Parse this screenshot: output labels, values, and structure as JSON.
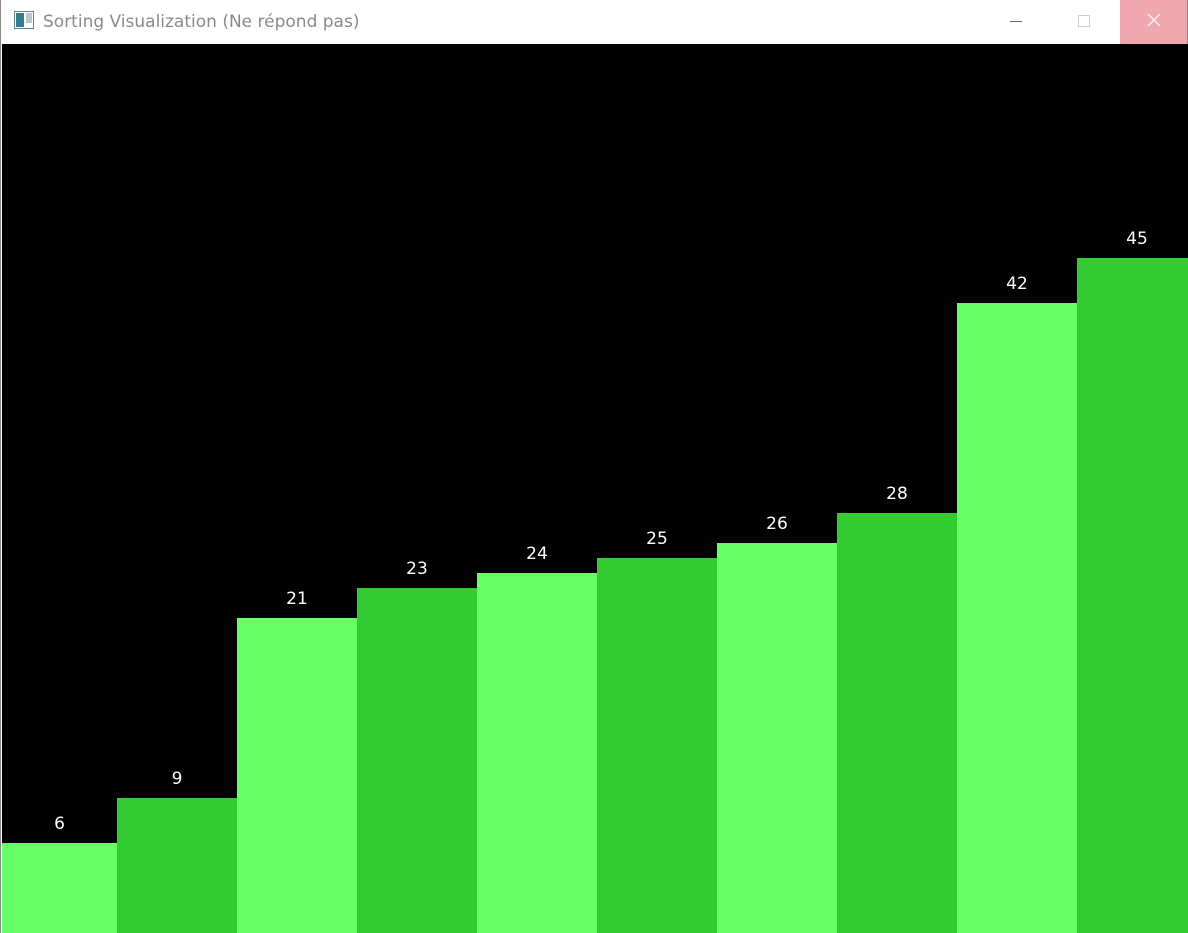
{
  "window": {
    "title": "Sorting Visualization (Ne répond pas)",
    "icon": "app-window-icon",
    "controls": [
      "minimize-icon",
      "maximize-icon",
      "close-icon"
    ],
    "close_hover_color": "#f1a7ae"
  },
  "chart_data": {
    "type": "bar",
    "title": "",
    "xlabel": "",
    "ylabel": "",
    "values": [
      6,
      9,
      21,
      23,
      24,
      25,
      26,
      28,
      42,
      45
    ],
    "colors": [
      "#66ff66",
      "#33cc33",
      "#66ff66",
      "#33cc33",
      "#66ff66",
      "#33cc33",
      "#66ff66",
      "#33cc33",
      "#66ff66",
      "#33cc33"
    ],
    "label_color": "#ffffff",
    "background": "#000000",
    "grid": false,
    "legend": "none"
  }
}
